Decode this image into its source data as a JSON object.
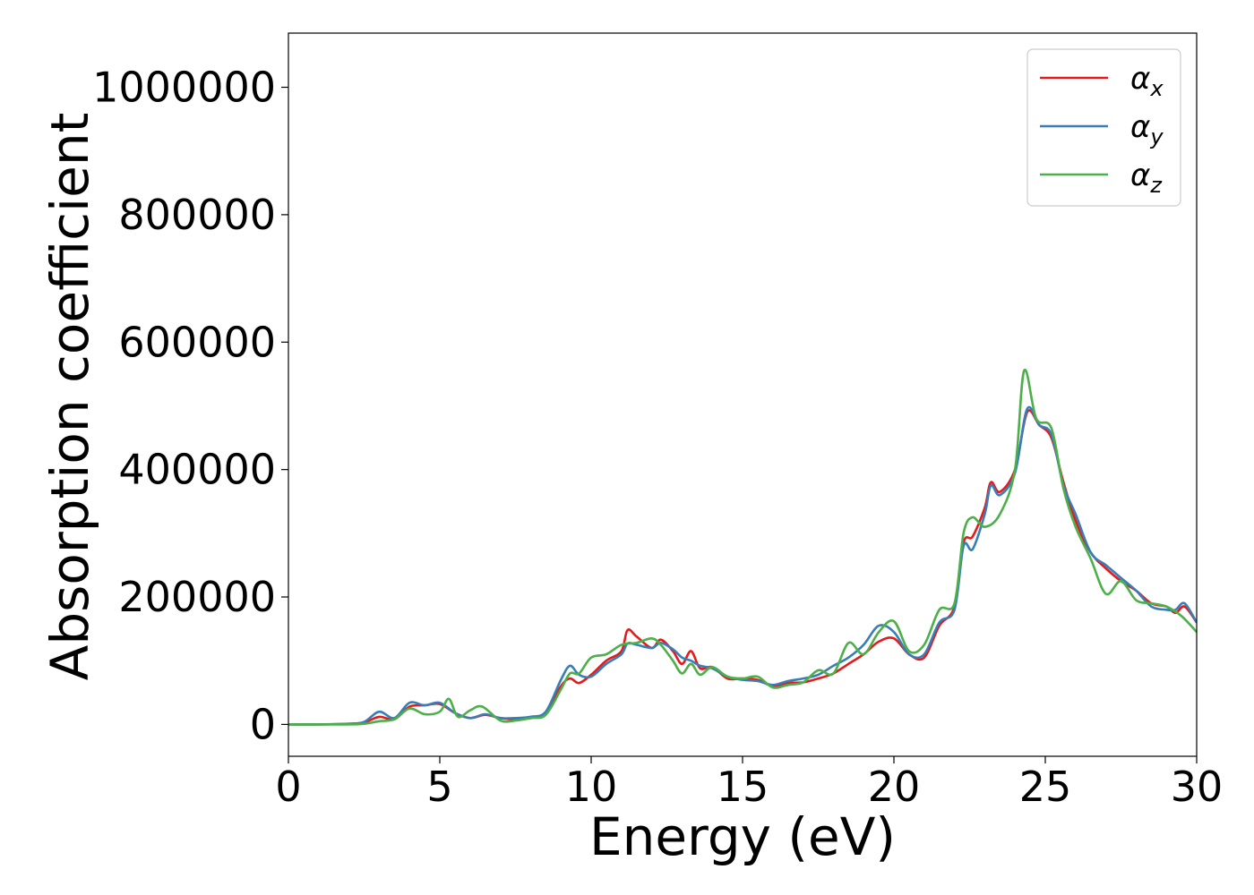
{
  "chart_data": {
    "type": "line",
    "xlabel": "Energy (eV)",
    "ylabel": "Absorption coefficient",
    "xlim": [
      0,
      30
    ],
    "ylim": [
      -50000,
      1085000
    ],
    "xticks": [
      0,
      5,
      10,
      15,
      20,
      25,
      30
    ],
    "xtick_labels": [
      "0",
      "5",
      "10",
      "15",
      "20",
      "25",
      "30"
    ],
    "yticks": [
      0,
      200000,
      400000,
      600000,
      800000,
      1000000
    ],
    "ytick_labels": [
      "0",
      "200000",
      "400000",
      "600000",
      "800000",
      "1000000"
    ],
    "grid": false,
    "legend_position": "top-right",
    "series": [
      {
        "name": "α",
        "subscript": "x",
        "color": "#e41a1c",
        "x": [
          0,
          1,
          2,
          2.5,
          3,
          3.5,
          4,
          4.5,
          5,
          5.5,
          6,
          6.5,
          7,
          7.5,
          8,
          8.5,
          9,
          9.3,
          9.6,
          10,
          10.5,
          11,
          11.2,
          11.5,
          12,
          12.3,
          12.7,
          13,
          13.3,
          13.6,
          14,
          14.5,
          15,
          15.5,
          16,
          16.5,
          17,
          17.5,
          18,
          18.5,
          19,
          19.5,
          20,
          20.5,
          21,
          21.5,
          22,
          22.3,
          22.6,
          23,
          23.2,
          23.5,
          24,
          24.4,
          24.8,
          25.2,
          25.6,
          26,
          26.5,
          27,
          27.5,
          28,
          28.5,
          29,
          29.3,
          29.6,
          30
        ],
        "y": [
          0,
          0,
          1000,
          3000,
          12000,
          8000,
          28000,
          30000,
          32000,
          18000,
          10000,
          15000,
          10000,
          8000,
          10000,
          18000,
          60000,
          72000,
          65000,
          78000,
          100000,
          115000,
          148000,
          138000,
          120000,
          133000,
          115000,
          95000,
          115000,
          88000,
          90000,
          72000,
          72000,
          70000,
          60000,
          65000,
          66000,
          72000,
          80000,
          95000,
          110000,
          130000,
          135000,
          110000,
          105000,
          155000,
          185000,
          285000,
          295000,
          340000,
          380000,
          365000,
          400000,
          490000,
          470000,
          450000,
          380000,
          320000,
          270000,
          245000,
          225000,
          210000,
          190000,
          185000,
          175000,
          185000,
          160000
        ]
      },
      {
        "name": "α",
        "subscript": "y",
        "color": "#377eb8",
        "x": [
          0,
          1,
          2,
          2.5,
          3,
          3.5,
          4,
          4.5,
          5,
          5.5,
          6,
          6.5,
          7,
          7.5,
          8,
          8.5,
          9,
          9.3,
          9.6,
          10,
          10.5,
          11,
          11.2,
          11.5,
          12,
          12.3,
          12.7,
          13,
          13.3,
          13.6,
          14,
          14.5,
          15,
          15.5,
          16,
          16.5,
          17,
          17.5,
          18,
          18.5,
          19,
          19.5,
          20,
          20.5,
          21,
          21.5,
          22,
          22.3,
          22.6,
          23,
          23.2,
          23.5,
          24,
          24.4,
          24.8,
          25.2,
          25.6,
          26,
          26.5,
          27,
          27.5,
          28,
          28.5,
          29,
          29.3,
          29.6,
          30
        ],
        "y": [
          0,
          0,
          1000,
          4000,
          20000,
          10000,
          34000,
          30000,
          34000,
          18000,
          10000,
          16000,
          10000,
          10000,
          12000,
          20000,
          70000,
          92000,
          78000,
          75000,
          95000,
          110000,
          127000,
          125000,
          120000,
          128000,
          118000,
          105000,
          100000,
          92000,
          88000,
          75000,
          70000,
          68000,
          62000,
          68000,
          72000,
          78000,
          92000,
          105000,
          125000,
          155000,
          145000,
          110000,
          110000,
          160000,
          180000,
          280000,
          275000,
          330000,
          375000,
          360000,
          395000,
          495000,
          470000,
          455000,
          375000,
          330000,
          270000,
          250000,
          230000,
          210000,
          185000,
          180000,
          180000,
          190000,
          160000
        ]
      },
      {
        "name": "α",
        "subscript": "z",
        "color": "#4daf4a",
        "x": [
          0,
          1,
          2,
          2.5,
          3,
          3.5,
          4,
          4.5,
          5,
          5.3,
          5.6,
          6,
          6.4,
          7,
          7.5,
          8,
          8.5,
          9,
          9.3,
          9.6,
          10,
          10.5,
          11,
          11.5,
          12,
          12.3,
          12.7,
          13,
          13.3,
          13.6,
          14,
          14.5,
          15,
          15.5,
          16,
          16.5,
          17,
          17.5,
          18,
          18.5,
          19,
          19.5,
          20,
          20.5,
          21,
          21.5,
          22,
          22.3,
          22.6,
          23,
          23.5,
          24,
          24.3,
          24.7,
          25.2,
          25.6,
          26,
          26.5,
          27,
          27.5,
          28,
          28.5,
          29,
          29.5,
          30
        ],
        "y": [
          0,
          0,
          0,
          1000,
          5000,
          8000,
          25000,
          16000,
          20000,
          40000,
          12000,
          22000,
          28000,
          6000,
          6000,
          10000,
          15000,
          55000,
          80000,
          80000,
          105000,
          110000,
          125000,
          128000,
          135000,
          125000,
          100000,
          80000,
          95000,
          78000,
          90000,
          75000,
          72000,
          75000,
          58000,
          62000,
          66000,
          85000,
          80000,
          128000,
          110000,
          145000,
          162000,
          115000,
          125000,
          180000,
          190000,
          300000,
          325000,
          310000,
          330000,
          400000,
          555000,
          480000,
          465000,
          370000,
          310000,
          260000,
          205000,
          225000,
          195000,
          190000,
          185000,
          170000,
          145000
        ]
      }
    ]
  }
}
